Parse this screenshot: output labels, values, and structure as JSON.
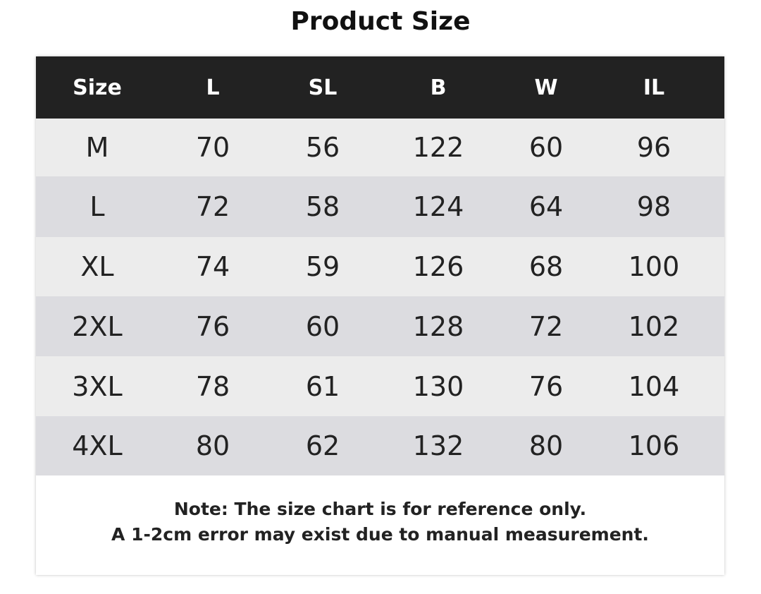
{
  "header": {
    "title": "Product Size"
  },
  "table": {
    "columns": [
      "Size",
      "L",
      "SL",
      "B",
      "W",
      "IL"
    ],
    "rows": [
      [
        "M",
        70,
        56,
        122,
        60,
        96
      ],
      [
        "L",
        72,
        58,
        124,
        64,
        98
      ],
      [
        "XL",
        74,
        59,
        126,
        68,
        100
      ],
      [
        "2XL",
        76,
        60,
        128,
        72,
        102
      ],
      [
        "3XL",
        78,
        61,
        130,
        76,
        104
      ],
      [
        "4XL",
        80,
        62,
        132,
        80,
        106
      ]
    ]
  },
  "note": [
    "Note: The size chart is for reference only.",
    "A 1-2cm error may exist due to manual measurement."
  ]
}
